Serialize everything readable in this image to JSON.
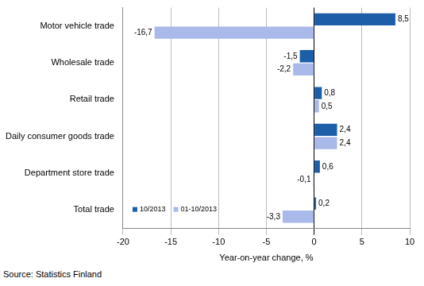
{
  "chart_data": {
    "type": "bar",
    "orientation": "horizontal",
    "categories": [
      "Motor vehicle trade",
      "Wholesale trade",
      "Retail trade",
      "Daily consumer goods trade",
      "Department store trade",
      "Total trade"
    ],
    "series": [
      {
        "name": "10/2013",
        "color": "#1c5ea8",
        "values": [
          8.5,
          -1.5,
          0.8,
          2.4,
          0.6,
          0.2
        ],
        "value_labels": [
          "8,5",
          "-1,5",
          "0,8",
          "2,4",
          "0,6",
          "0,2"
        ]
      },
      {
        "name": "01-10/2013",
        "color": "#a9b9e9",
        "values": [
          -16.7,
          -2.2,
          0.5,
          2.4,
          -0.1,
          -3.3
        ],
        "value_labels": [
          "-16,7",
          "-2,2",
          "0,5",
          "2,4",
          "-0,1",
          "-3,3"
        ]
      }
    ],
    "xlim": [
      -20,
      10
    ],
    "xticks": [
      -20,
      -15,
      -10,
      -5,
      0,
      5,
      10
    ],
    "x_label": "Year-on-year change, %",
    "grid": true,
    "legend": "lower left",
    "data_labels": true,
    "annotations": [
      "Source: Statistics Finland"
    ]
  }
}
